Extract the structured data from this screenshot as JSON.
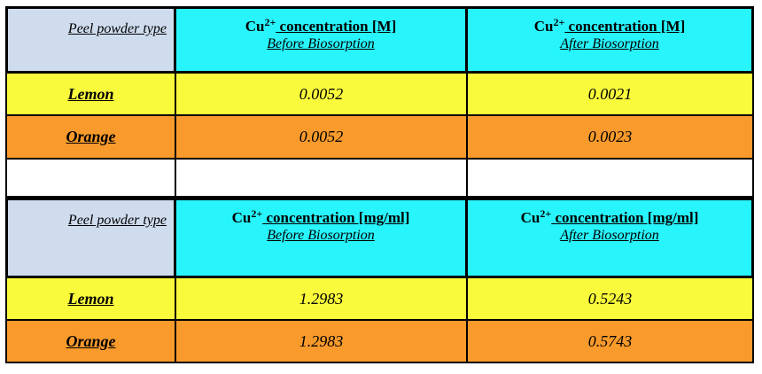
{
  "table1": {
    "header": {
      "label": "Peel powder type",
      "before_prefix": "Cu",
      "before_sup": "2+",
      "before_title": " concentration [M]",
      "before_sub": "Before Biosorption",
      "after_prefix": "Cu",
      "after_sup": "2+",
      "after_title": " concentration [M]",
      "after_sub": "After Biosorption"
    },
    "rows": [
      {
        "label": "Lemon",
        "before": "0.0052",
        "after": "0.0021"
      },
      {
        "label": "Orange",
        "before": "0.0052",
        "after": "0.0023"
      }
    ]
  },
  "table2": {
    "header": {
      "label": "Peel powder type",
      "before_prefix": "Cu",
      "before_sup": "2+",
      "before_title": " concentration [mg/ml]",
      "before_sub": "Before Biosorption",
      "after_prefix": "Cu",
      "after_sup": "2+",
      "after_title": " concentration [mg/ml]",
      "after_sub": "After Biosorption"
    },
    "rows": [
      {
        "label": "Lemon",
        "before": "1.2983",
        "after": "0.5243"
      },
      {
        "label": "Orange",
        "before": "1.2983",
        "after": "0.5743"
      }
    ]
  },
  "colors": {
    "label_header": "#cfdcee",
    "col_header": "#28f4fb",
    "lemon_row": "#fafa3c",
    "orange_row": "#f99a2c"
  }
}
